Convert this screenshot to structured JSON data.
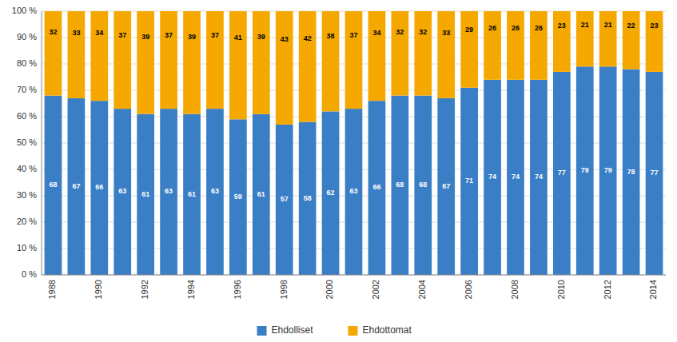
{
  "chart_data": {
    "type": "bar",
    "stacked": true,
    "data_labels": true,
    "grid": true,
    "legend": "bottom",
    "categories": [
      "1988",
      null,
      "1990",
      null,
      "1992",
      null,
      "1994",
      null,
      "1996",
      null,
      "1998",
      null,
      "2000",
      null,
      "2002",
      null,
      "2004",
      null,
      "2006",
      null,
      "2008",
      null,
      "2010",
      null,
      "2012",
      null,
      "2014"
    ],
    "series": [
      {
        "name": "Ehdolliset",
        "color": "#3A7EC6",
        "values": [
          68,
          67,
          66,
          63,
          61,
          63,
          61,
          63,
          59,
          61,
          57,
          58,
          62,
          63,
          66,
          68,
          68,
          67,
          71,
          74,
          74,
          74,
          77,
          79,
          79,
          78,
          77
        ]
      },
      {
        "name": "Ehdottomat",
        "color": "#F5A800",
        "values": [
          32,
          33,
          34,
          37,
          39,
          37,
          39,
          37,
          41,
          39,
          43,
          42,
          38,
          37,
          34,
          32,
          32,
          33,
          29,
          26,
          26,
          26,
          23,
          21,
          21,
          22,
          23
        ]
      }
    ],
    "ylim": [
      0,
      100
    ],
    "yticks": [
      {
        "value": 0,
        "label": "0 %"
      },
      {
        "value": 10,
        "label": "10 %"
      },
      {
        "value": 20,
        "label": "20 %"
      },
      {
        "value": 30,
        "label": "30 %"
      },
      {
        "value": 40,
        "label": "40 %"
      },
      {
        "value": 50,
        "label": "50 %"
      },
      {
        "value": 60,
        "label": "60 %"
      },
      {
        "value": 70,
        "label": "70 %"
      },
      {
        "value": 80,
        "label": "80 %"
      },
      {
        "value": 90,
        "label": "90 %"
      },
      {
        "value": 100,
        "label": "100 %"
      }
    ]
  }
}
